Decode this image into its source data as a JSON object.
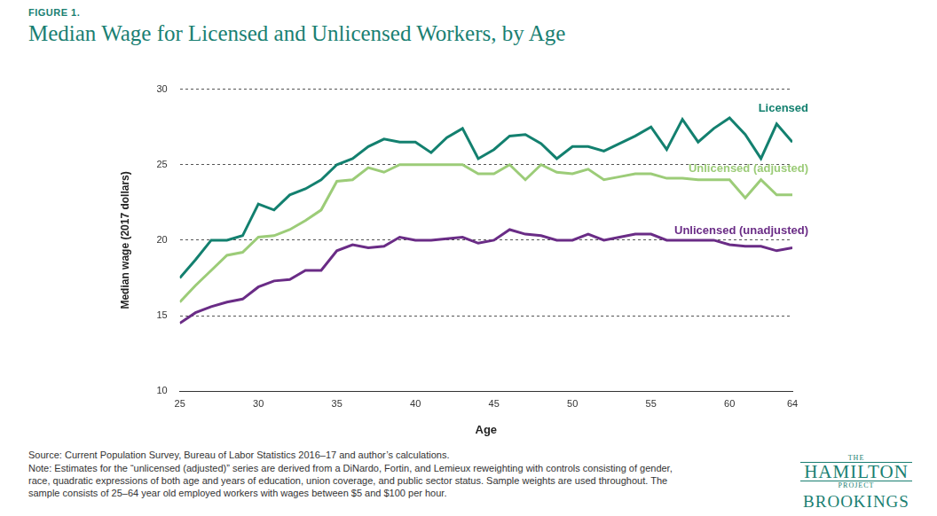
{
  "chart_data": {
    "type": "line",
    "figure_label": "FIGURE 1.",
    "title": "Median Wage for Licensed and Unlicensed Workers, by Age",
    "x_label": "Age",
    "y_label": "Median wage (2017 dollars)",
    "x": [
      25,
      26,
      27,
      28,
      29,
      30,
      31,
      32,
      33,
      34,
      35,
      36,
      37,
      38,
      39,
      40,
      41,
      42,
      43,
      44,
      45,
      46,
      47,
      48,
      49,
      50,
      51,
      52,
      53,
      54,
      55,
      56,
      57,
      58,
      59,
      60,
      61,
      62,
      63,
      64
    ],
    "series": [
      {
        "name": "Licensed",
        "color": "#13806f",
        "values": [
          17.5,
          18.7,
          20.0,
          20.0,
          20.3,
          22.4,
          22.0,
          23.0,
          23.4,
          24.0,
          25.0,
          25.4,
          26.2,
          26.7,
          26.5,
          26.5,
          25.8,
          26.8,
          27.4,
          25.4,
          26.0,
          26.9,
          27.0,
          26.4,
          25.4,
          26.2,
          26.2,
          25.9,
          26.4,
          26.9,
          27.5,
          26.0,
          28.0,
          26.5,
          27.4,
          28.1,
          27.0,
          25.4,
          27.7,
          26.5
        ]
      },
      {
        "name": "Unlicensed (adjusted)",
        "color": "#9ccc78",
        "values": [
          15.9,
          17.0,
          18.0,
          19.0,
          19.2,
          20.2,
          20.3,
          20.7,
          21.3,
          22.0,
          23.9,
          24.0,
          24.8,
          24.5,
          25.0,
          25.0,
          25.0,
          25.0,
          25.0,
          24.4,
          24.4,
          25.0,
          24.0,
          25.0,
          24.5,
          24.4,
          24.7,
          24.0,
          24.2,
          24.4,
          24.4,
          24.1,
          24.1,
          24.0,
          24.0,
          24.0,
          22.8,
          24.0,
          23.0,
          23.0
        ]
      },
      {
        "name": "Unlicensed (unadjusted)",
        "color": "#6a2c86",
        "values": [
          14.5,
          15.2,
          15.6,
          15.9,
          16.1,
          16.9,
          17.3,
          17.4,
          18.0,
          18.0,
          19.3,
          19.7,
          19.5,
          19.6,
          20.2,
          20.0,
          20.0,
          20.1,
          20.2,
          19.8,
          20.0,
          20.7,
          20.4,
          20.3,
          20.0,
          20.0,
          20.4,
          20.0,
          20.2,
          20.4,
          20.4,
          20.0,
          20.0,
          20.0,
          20.0,
          19.7,
          19.6,
          19.6,
          19.3,
          19.5
        ]
      }
    ],
    "xlim": [
      25,
      64
    ],
    "xticks": [
      25,
      30,
      35,
      40,
      45,
      50,
      55,
      60,
      64
    ],
    "ylim": [
      10,
      30
    ],
    "yticks": [
      10,
      15,
      20,
      25,
      30
    ],
    "grid": true,
    "source": "Source: Current Population Survey, Bureau of Labor Statistics 2016–17 and author’s calculations.",
    "note": "Note: Estimates for the “unlicensed (adjusted)” series are derived from a DiNardo, Fortin, and Lemieux reweighting with controls consisting of gender, race, quadratic expressions of both age and years of education, union coverage, and public sector status. Sample weights are used throughout. The sample consists of 25–64 year old employed workers with wages between $5 and $100 per hour.",
    "logo": [
      "THE",
      "HAMILTON",
      "PROJECT",
      "BROOKINGS"
    ]
  }
}
